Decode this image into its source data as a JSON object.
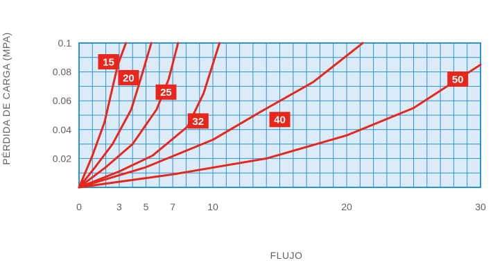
{
  "chart_data": {
    "type": "line",
    "title": "",
    "xlabel": "FLUJO",
    "ylabel": "PÉRDIDA DE CARGA (MPA)",
    "xlim": [
      0,
      30
    ],
    "ylim": [
      0,
      0.1
    ],
    "x_ticks": [
      0,
      3,
      5,
      7,
      10,
      20,
      30
    ],
    "x_tick_labels": [
      "0",
      "3",
      "5",
      "7",
      "10",
      "20",
      "30"
    ],
    "y_ticks": [
      0.02,
      0.04,
      0.06,
      0.08,
      0.1
    ],
    "y_tick_labels": [
      "0.02",
      "0.04",
      "0.06",
      "0.08",
      "0.1"
    ],
    "grid": true,
    "background_color": "#dcebf8",
    "grid_color": "#2a93d5",
    "line_color": "#e8261c",
    "label_box_color": "#e8261c",
    "series": [
      {
        "name": "15",
        "x": [
          0,
          1,
          1.9,
          2.4,
          2.9,
          3.5
        ],
        "y": [
          0,
          0.022,
          0.045,
          0.065,
          0.085,
          0.1
        ]
      },
      {
        "name": "20",
        "x": [
          0,
          1.2,
          2.5,
          3.9,
          4.6,
          5.4
        ],
        "y": [
          0,
          0.014,
          0.03,
          0.054,
          0.075,
          0.1
        ]
      },
      {
        "name": "25",
        "x": [
          0,
          2,
          4,
          5.8,
          6.7,
          7.4
        ],
        "y": [
          0,
          0.014,
          0.03,
          0.054,
          0.075,
          0.1
        ]
      },
      {
        "name": "32",
        "x": [
          0,
          3,
          5.5,
          8.1,
          9.3,
          10.5
        ],
        "y": [
          0,
          0.011,
          0.022,
          0.042,
          0.065,
          0.1
        ]
      },
      {
        "name": "40",
        "x": [
          0,
          5,
          10,
          13.5,
          17.5,
          21.2
        ],
        "y": [
          0,
          0.014,
          0.033,
          0.052,
          0.073,
          0.1
        ]
      },
      {
        "name": "50",
        "x": [
          0,
          7,
          14,
          20,
          25,
          30
        ],
        "y": [
          0,
          0.009,
          0.02,
          0.036,
          0.055,
          0.085
        ]
      }
    ],
    "series_label_anchor": {
      "15": [
        2.2,
        0.087
      ],
      "20": [
        3.7,
        0.076
      ],
      "25": [
        6.5,
        0.066
      ],
      "32": [
        8.9,
        0.046
      ],
      "40": [
        15.0,
        0.047
      ],
      "50": [
        28.3,
        0.075
      ]
    }
  }
}
